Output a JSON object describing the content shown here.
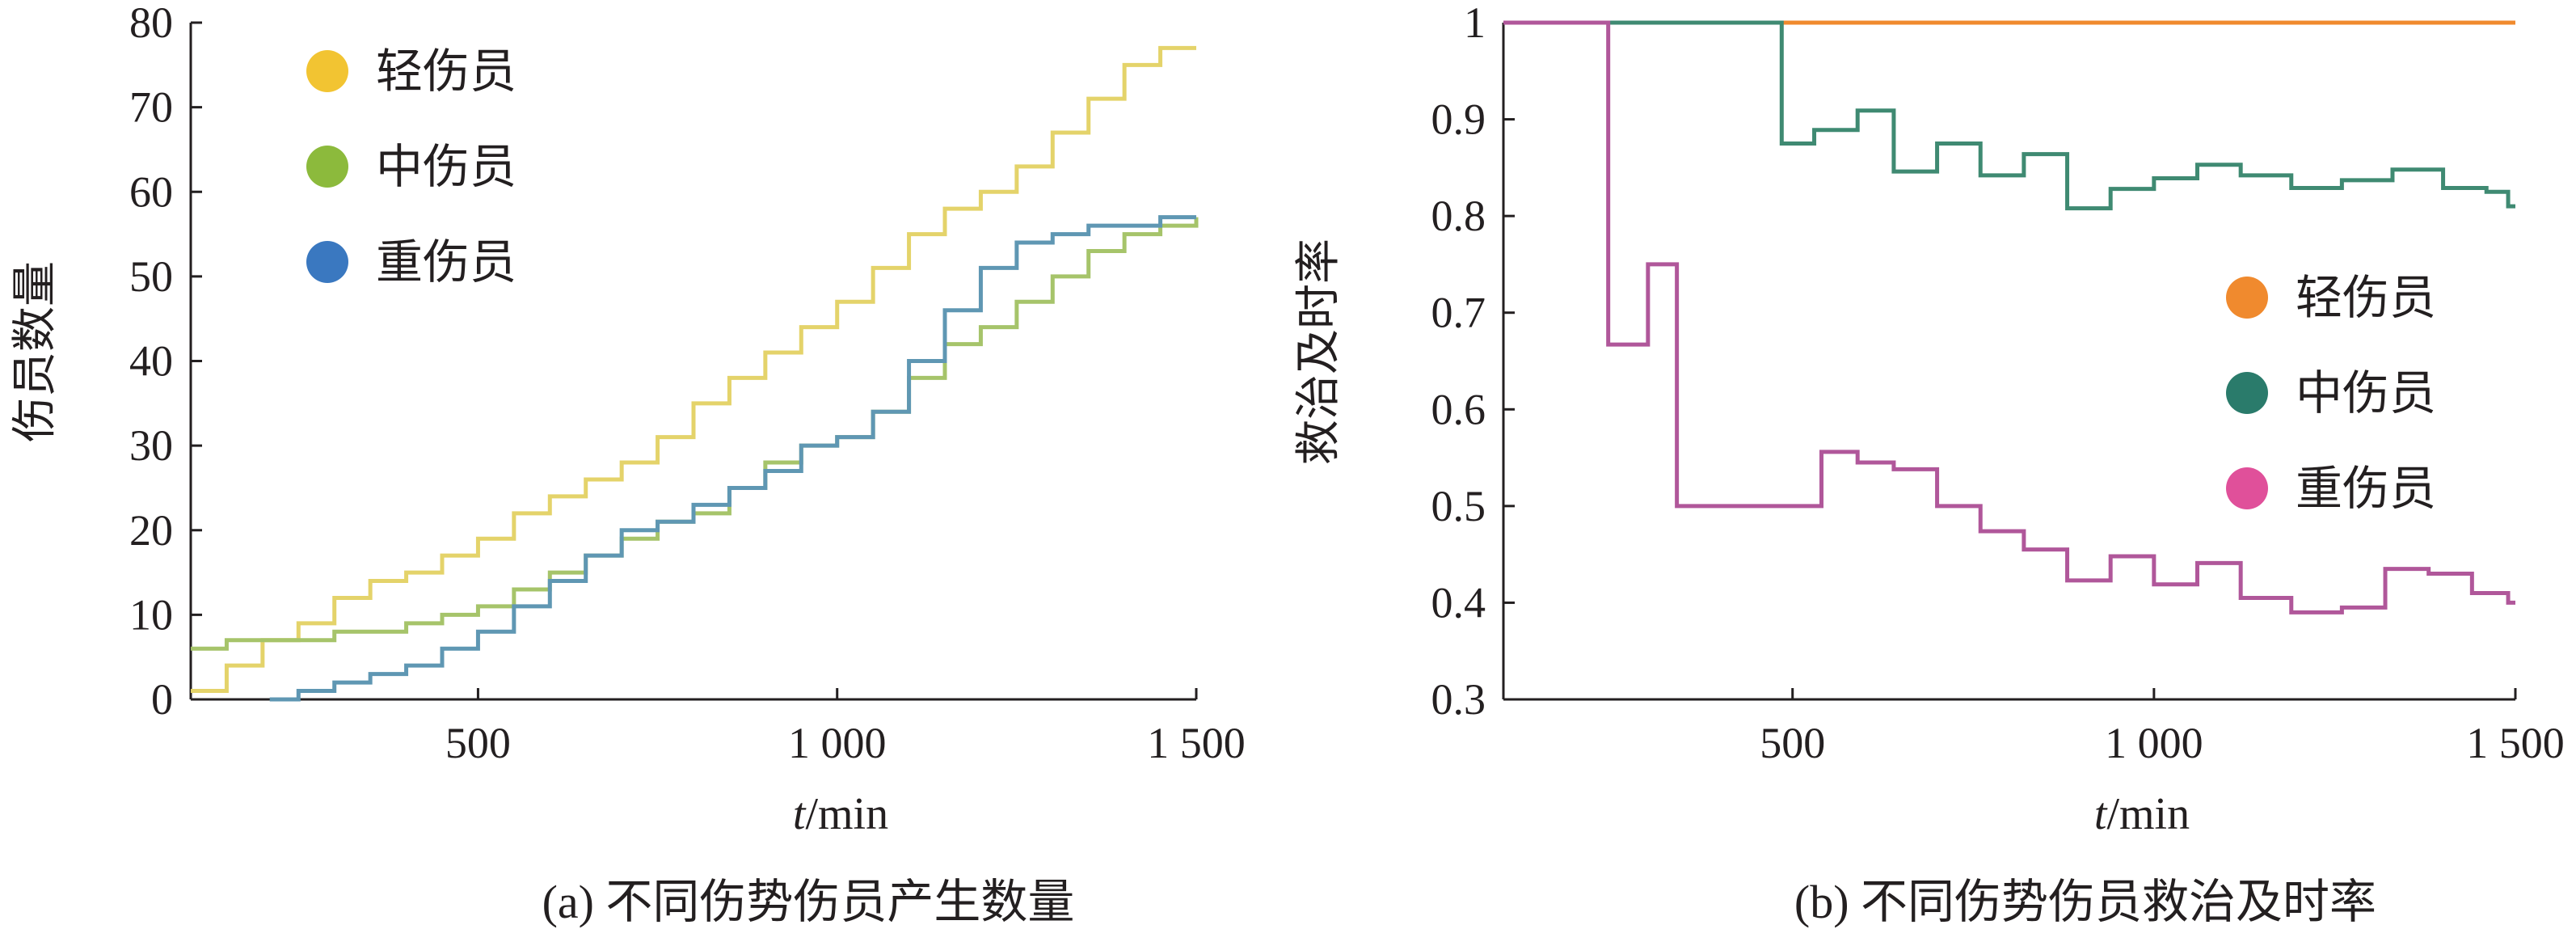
{
  "chart_data": [
    {
      "panel": "a",
      "type": "line",
      "caption": "(a) 不同伤势伤员产生数量",
      "ylabel": "伤员数量",
      "xlabel_italic": "t",
      "xlabel_rest": "/min",
      "xlim": [
        100,
        1500
      ],
      "ylim": [
        0,
        80
      ],
      "x_ticks": [
        500,
        1000,
        1500
      ],
      "x_tick_labels": [
        "500",
        "1 000",
        "1 500"
      ],
      "y_ticks": [
        0,
        10,
        20,
        30,
        40,
        50,
        60,
        70,
        80
      ],
      "y_tick_labels": [
        "0",
        "10",
        "20",
        "30",
        "40",
        "50",
        "60",
        "70",
        "80"
      ],
      "grid": false,
      "legend_position": "top-left",
      "series": [
        {
          "name": "轻伤员",
          "color": "#f2c432",
          "line_color": "#e4d36a",
          "points": [
            [
              100,
              1
            ],
            [
              150,
              4
            ],
            [
              200,
              7
            ],
            [
              250,
              9
            ],
            [
              300,
              12
            ],
            [
              350,
              14
            ],
            [
              400,
              15
            ],
            [
              450,
              17
            ],
            [
              500,
              19
            ],
            [
              550,
              22
            ],
            [
              600,
              24
            ],
            [
              650,
              26
            ],
            [
              700,
              28
            ],
            [
              750,
              31
            ],
            [
              800,
              35
            ],
            [
              850,
              38
            ],
            [
              900,
              41
            ],
            [
              950,
              44
            ],
            [
              1000,
              47
            ],
            [
              1050,
              51
            ],
            [
              1100,
              55
            ],
            [
              1150,
              58
            ],
            [
              1200,
              60
            ],
            [
              1250,
              63
            ],
            [
              1300,
              67
            ],
            [
              1350,
              71
            ],
            [
              1400,
              75
            ],
            [
              1450,
              77
            ],
            [
              1500,
              77
            ]
          ]
        },
        {
          "name": "中伤员",
          "color": "#8cba3c",
          "line_color": "#a6c46a",
          "points": [
            [
              100,
              6
            ],
            [
              150,
              7
            ],
            [
              250,
              7
            ],
            [
              300,
              8
            ],
            [
              400,
              9
            ],
            [
              450,
              10
            ],
            [
              500,
              11
            ],
            [
              550,
              13
            ],
            [
              600,
              15
            ],
            [
              650,
              17
            ],
            [
              700,
              19
            ],
            [
              750,
              21
            ],
            [
              800,
              22
            ],
            [
              850,
              25
            ],
            [
              900,
              28
            ],
            [
              950,
              30
            ],
            [
              1000,
              31
            ],
            [
              1050,
              34
            ],
            [
              1100,
              38
            ],
            [
              1150,
              42
            ],
            [
              1200,
              44
            ],
            [
              1250,
              47
            ],
            [
              1300,
              50
            ],
            [
              1350,
              53
            ],
            [
              1400,
              55
            ],
            [
              1450,
              56
            ],
            [
              1500,
              57
            ]
          ]
        },
        {
          "name": "重伤员",
          "color": "#3a78c0",
          "line_color": "#5f97b3",
          "points": [
            [
              210,
              0
            ],
            [
              250,
              1
            ],
            [
              300,
              2
            ],
            [
              350,
              3
            ],
            [
              400,
              4
            ],
            [
              450,
              6
            ],
            [
              500,
              8
            ],
            [
              550,
              11
            ],
            [
              600,
              14
            ],
            [
              650,
              17
            ],
            [
              700,
              20
            ],
            [
              750,
              21
            ],
            [
              800,
              23
            ],
            [
              850,
              25
            ],
            [
              900,
              27
            ],
            [
              950,
              30
            ],
            [
              1000,
              31
            ],
            [
              1050,
              34
            ],
            [
              1100,
              40
            ],
            [
              1150,
              46
            ],
            [
              1200,
              51
            ],
            [
              1250,
              54
            ],
            [
              1300,
              55
            ],
            [
              1350,
              56
            ],
            [
              1400,
              56
            ],
            [
              1450,
              57
            ],
            [
              1500,
              57
            ]
          ]
        }
      ]
    },
    {
      "panel": "b",
      "type": "line",
      "caption": "(b) 不同伤势伤员救治及时率",
      "ylabel": "救治及时率",
      "xlabel_italic": "t",
      "xlabel_rest": "/min",
      "xlim": [
        100,
        1500
      ],
      "ylim": [
        0.3,
        1.0
      ],
      "x_ticks": [
        500,
        1000,
        1500
      ],
      "x_tick_labels": [
        "500",
        "1 000",
        "1 500"
      ],
      "y_ticks": [
        0.3,
        0.4,
        0.5,
        0.6,
        0.7,
        0.8,
        0.9,
        1.0
      ],
      "y_tick_labels": [
        "0.3",
        "0.4",
        "0.5",
        "0.6",
        "0.7",
        "0.8",
        "0.9",
        "1"
      ],
      "grid": false,
      "legend_position": "center-right",
      "series": [
        {
          "name": "轻伤员",
          "color": "#f08a2e",
          "line_color": "#f08a2e",
          "points": [
            [
              100,
              1.0
            ],
            [
              1500,
              1.0
            ]
          ]
        },
        {
          "name": "中伤员",
          "color": "#2a7b6b",
          "line_color": "#3f8a72",
          "points": [
            [
              100,
              1.0
            ],
            [
              485,
              1.0
            ],
            [
              485,
              0.875
            ],
            [
              530,
              0.875
            ],
            [
              530,
              0.889
            ],
            [
              590,
              0.889
            ],
            [
              590,
              0.909
            ],
            [
              640,
              0.909
            ],
            [
              640,
              0.846
            ],
            [
              700,
              0.846
            ],
            [
              700,
              0.875
            ],
            [
              760,
              0.875
            ],
            [
              760,
              0.842
            ],
            [
              820,
              0.842
            ],
            [
              820,
              0.864
            ],
            [
              880,
              0.864
            ],
            [
              880,
              0.808
            ],
            [
              940,
              0.808
            ],
            [
              940,
              0.828
            ],
            [
              1000,
              0.828
            ],
            [
              1000,
              0.839
            ],
            [
              1060,
              0.839
            ],
            [
              1060,
              0.853
            ],
            [
              1120,
              0.853
            ],
            [
              1120,
              0.842
            ],
            [
              1190,
              0.842
            ],
            [
              1190,
              0.829
            ],
            [
              1260,
              0.829
            ],
            [
              1260,
              0.837
            ],
            [
              1330,
              0.837
            ],
            [
              1330,
              0.848
            ],
            [
              1400,
              0.848
            ],
            [
              1400,
              0.829
            ],
            [
              1460,
              0.829
            ],
            [
              1460,
              0.825
            ],
            [
              1490,
              0.825
            ],
            [
              1490,
              0.81
            ],
            [
              1500,
              0.81
            ]
          ]
        },
        {
          "name": "重伤员",
          "color": "#e0509a",
          "line_color": "#b0579a",
          "points": [
            [
              100,
              1.0
            ],
            [
              245,
              1.0
            ],
            [
              245,
              0.667
            ],
            [
              300,
              0.667
            ],
            [
              300,
              0.75
            ],
            [
              340,
              0.75
            ],
            [
              340,
              0.5
            ],
            [
              540,
              0.5
            ],
            [
              540,
              0.556
            ],
            [
              590,
              0.556
            ],
            [
              590,
              0.545
            ],
            [
              640,
              0.545
            ],
            [
              640,
              0.538
            ],
            [
              700,
              0.538
            ],
            [
              700,
              0.5
            ],
            [
              760,
              0.5
            ],
            [
              760,
              0.474
            ],
            [
              820,
              0.474
            ],
            [
              820,
              0.455
            ],
            [
              880,
              0.455
            ],
            [
              880,
              0.423
            ],
            [
              940,
              0.423
            ],
            [
              940,
              0.448
            ],
            [
              1000,
              0.448
            ],
            [
              1000,
              0.419
            ],
            [
              1060,
              0.419
            ],
            [
              1060,
              0.441
            ],
            [
              1120,
              0.441
            ],
            [
              1120,
              0.405
            ],
            [
              1190,
              0.405
            ],
            [
              1190,
              0.39
            ],
            [
              1260,
              0.39
            ],
            [
              1260,
              0.395
            ],
            [
              1320,
              0.395
            ],
            [
              1320,
              0.435
            ],
            [
              1380,
              0.435
            ],
            [
              1380,
              0.43
            ],
            [
              1440,
              0.43
            ],
            [
              1440,
              0.41
            ],
            [
              1490,
              0.41
            ],
            [
              1490,
              0.4
            ],
            [
              1500,
              0.4
            ]
          ]
        }
      ]
    }
  ]
}
